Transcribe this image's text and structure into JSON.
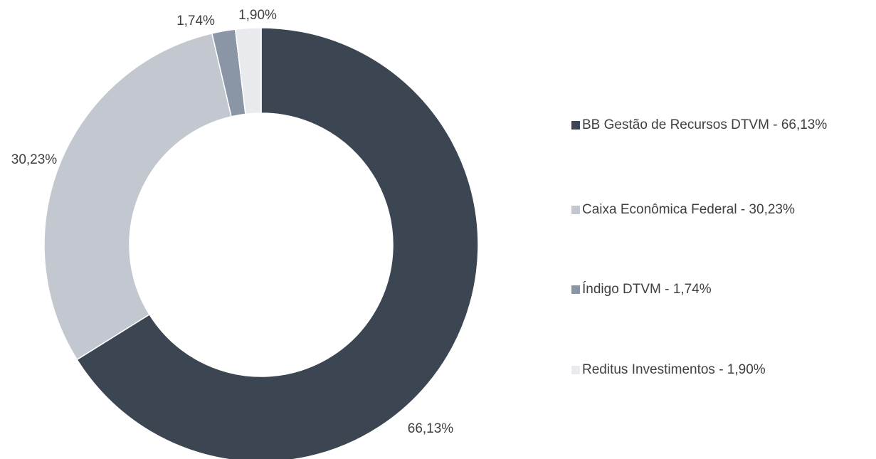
{
  "chart_data": {
    "type": "donut",
    "categories": [
      "BB Gestão de Recursos DTVM - 66,13%",
      "Caixa Econômica Federal - 30,23%",
      "Índigo DTVM - 1,74%",
      "Reditus Investimentos - 1,90%"
    ],
    "values": [
      66.13,
      30.23,
      1.74,
      1.9
    ],
    "value_labels": [
      "66,13%",
      "30,23%",
      "1,74%",
      "1,90%"
    ],
    "colors": [
      "#3c4552",
      "#c3c8d0",
      "#8a96a5",
      "#e8eaee"
    ],
    "legend": "right"
  }
}
